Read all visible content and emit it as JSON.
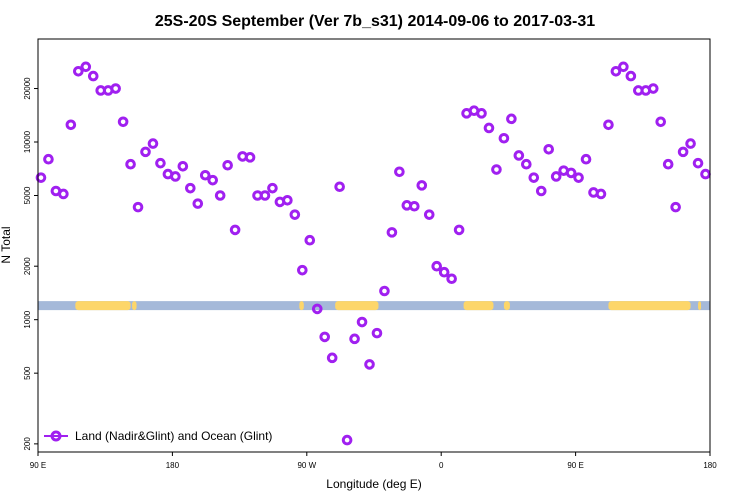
{
  "chart_data": {
    "type": "scatter",
    "title": "25S-20S September (Ver 7b_s31)   2014-09-06 to 2017-03-31",
    "xlabel": "Longitude (deg E)",
    "ylabel": "N Total",
    "x_axis": {
      "range_deg": [
        90,
        540
      ],
      "ticks": [
        {
          "value": 90,
          "label": "90 E"
        },
        {
          "value": 180,
          "label": "180"
        },
        {
          "value": 270,
          "label": "90 W"
        },
        {
          "value": 360,
          "label": "0"
        },
        {
          "value": 450,
          "label": "90 E"
        },
        {
          "value": 540,
          "label": "180"
        }
      ]
    },
    "y_axis": {
      "scale": "log",
      "range": [
        180,
        38000
      ],
      "ticks": [
        {
          "value": 200,
          "label": "200"
        },
        {
          "value": 500,
          "label": "500"
        },
        {
          "value": 1000,
          "label": "1000"
        },
        {
          "value": 2000,
          "label": "2000"
        },
        {
          "value": 5000,
          "label": "5000"
        },
        {
          "value": 10000,
          "label": "10000"
        },
        {
          "value": 20000,
          "label": "20000"
        }
      ]
    },
    "legend": {
      "position": "bottom-left",
      "label": "Land (Nadir&Glint) and Ocean (Glint)"
    },
    "marker_color": "#a020f0",
    "land_band": {
      "ocean_color": "#a5b9d9",
      "land_color": "#fdd66a",
      "y_value": 1200,
      "land_segments_deg": [
        [
          115,
          152
        ],
        [
          153,
          156
        ],
        [
          265,
          268
        ],
        [
          289,
          318
        ],
        [
          375,
          395
        ],
        [
          402,
          406
        ],
        [
          472,
          527
        ],
        [
          532,
          534
        ]
      ]
    },
    "x": [
      92,
      97,
      102,
      107,
      112,
      117,
      122,
      127,
      132,
      137,
      142,
      147,
      152,
      157,
      162,
      167,
      172,
      177,
      182,
      187,
      192,
      197,
      202,
      207,
      212,
      217,
      222,
      227,
      232,
      237,
      242,
      247,
      252,
      257,
      262,
      267,
      272,
      277,
      282,
      287,
      292,
      297,
      302,
      307,
      312,
      317,
      322,
      327,
      332,
      337,
      342,
      347,
      352,
      357,
      362,
      367,
      372,
      377,
      382,
      387,
      392,
      397,
      402,
      407,
      412,
      417,
      422,
      427,
      432,
      437,
      442,
      447,
      452,
      457,
      462,
      467,
      472,
      477,
      482,
      487,
      492,
      497,
      502,
      507,
      512,
      517,
      522,
      527,
      532,
      537
    ],
    "y": [
      6300,
      8000,
      5300,
      5100,
      12500,
      25000,
      26500,
      23500,
      19500,
      19500,
      20000,
      13000,
      7500,
      4300,
      8800,
      9800,
      7600,
      6600,
      6400,
      7300,
      5500,
      4500,
      6500,
      6100,
      5000,
      7400,
      3200,
      8300,
      8200,
      5000,
      5000,
      5500,
      4600,
      4700,
      3900,
      1900,
      2800,
      1150,
      800,
      610,
      5600,
      210,
      780,
      970,
      560,
      840,
      1450,
      3100,
      6800,
      4400,
      4350,
      5700,
      3900,
      2000,
      1850,
      1700,
      3200,
      14500,
      15000,
      14500,
      12000,
      7000,
      10500,
      13500,
      8400,
      7500,
      6300,
      5300,
      9100,
      6400,
      6900,
      6700,
      6300,
      8000,
      5200,
      5100,
      12500,
      25000,
      26500,
      23500,
      19500,
      19500,
      20000,
      13000,
      7500,
      4300,
      8800,
      9800,
      7600,
      6600
    ]
  }
}
